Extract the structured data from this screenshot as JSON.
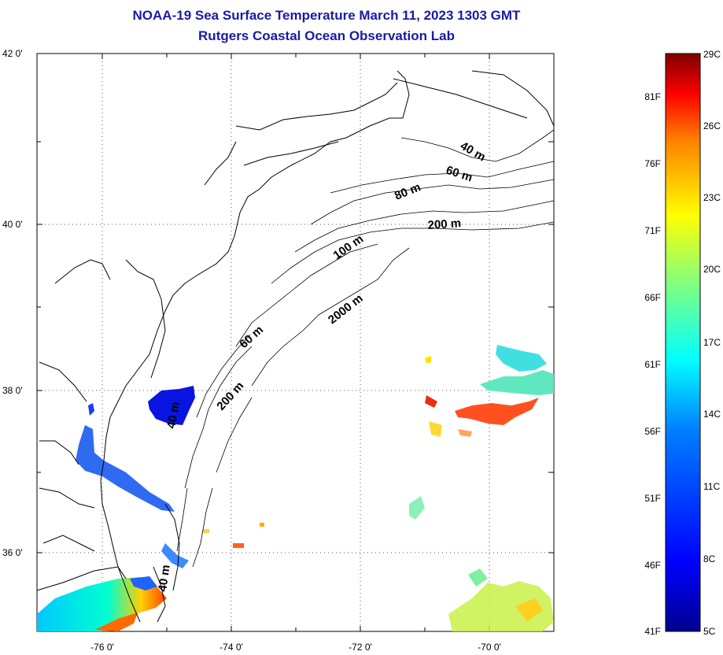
{
  "title": {
    "line1": "NOAA-19 Sea Surface Temperature March 11, 2023 1303 GMT",
    "line2": "Rutgers Coastal Ocean Observation Lab"
  },
  "map": {
    "lat_labels": [
      "42 0'",
      "40 0'",
      "38 0'",
      "36 0'"
    ],
    "lon_labels": [
      "-76 0'",
      "-74 0'",
      "-72 0'",
      "-70 0'"
    ],
    "bathymetry_labels": [
      "40 m",
      "60 m",
      "80 m",
      "200 m",
      "100 m",
      "2000 m",
      "60 m",
      "200 m",
      "40 m",
      "40 m"
    ]
  },
  "colorbar": {
    "celsius_labels": [
      "29C",
      "26C",
      "23C",
      "20C",
      "17C",
      "14C",
      "11C",
      "8C",
      "5C"
    ],
    "fahrenheit_labels": [
      "81F",
      "76F",
      "71F",
      "66F",
      "61F",
      "56F",
      "51F",
      "46F",
      "41F"
    ],
    "colors": [
      "#7f0000",
      "#ff0000",
      "#ff8000",
      "#ffff00",
      "#80ff80",
      "#00ffff",
      "#0080ff",
      "#0000ff",
      "#00008f"
    ]
  }
}
